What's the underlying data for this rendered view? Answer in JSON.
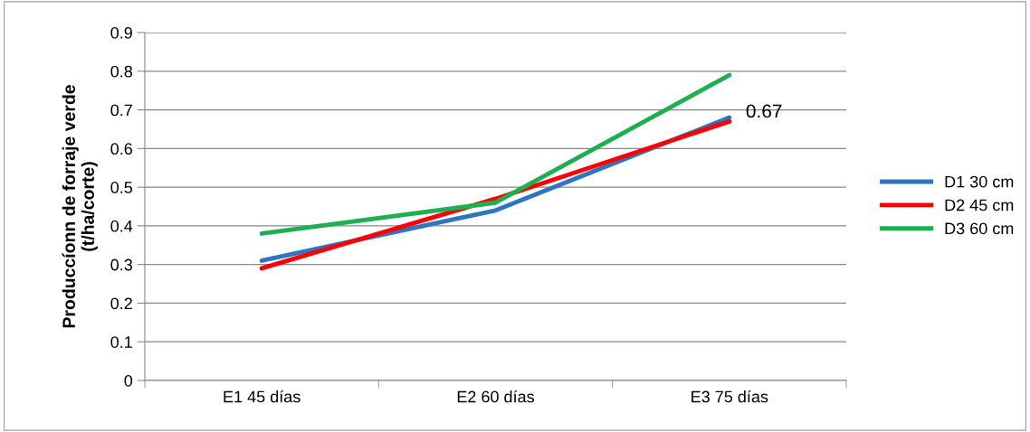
{
  "chart_data": {
    "type": "line",
    "ylabel": "Produccíonn de forraje verde\n(t/ha/corte)",
    "categories": [
      "E1 45 días",
      "E2 60 días",
      "E3 75 días"
    ],
    "series": [
      {
        "name": "D1 30 cm",
        "color": "#2e75c0",
        "values": [
          0.31,
          0.44,
          0.68
        ]
      },
      {
        "name": "D2 45 cm",
        "color": "#ff0000",
        "values": [
          0.29,
          0.47,
          0.67
        ],
        "value_labels": [
          null,
          null,
          "0.67"
        ]
      },
      {
        "name": "D3 60 cm",
        "color": "#1eb050",
        "values": [
          0.38,
          0.46,
          0.79
        ]
      }
    ],
    "ylim": [
      0,
      0.9
    ],
    "yticks": [
      0,
      0.1,
      0.2,
      0.3,
      0.4,
      0.5,
      0.6,
      0.7,
      0.8,
      0.9
    ],
    "grid": "y",
    "legend": "right",
    "marker": "none",
    "line_style": "solid"
  }
}
